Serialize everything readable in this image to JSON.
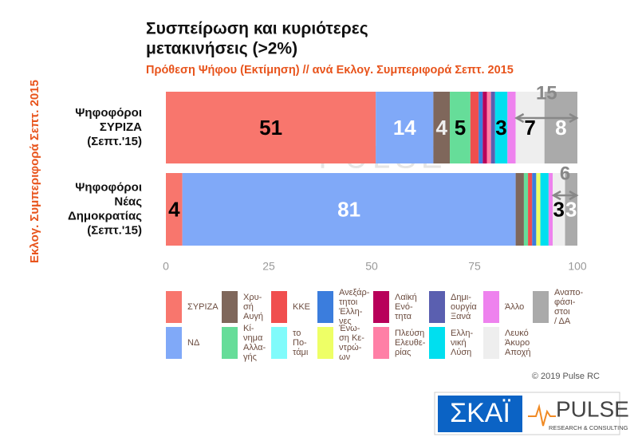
{
  "chart_data": {
    "type": "stacked-barh",
    "title": [
      "Συσπείρωση και κυριότερες",
      "μετακινήσεις (>2%)"
    ],
    "subtitle": "Πρόθεση Ψήφου (Εκτίμηση) // ανά Εκλογ. Συμπεριφορά Σεπτ. 2015",
    "ylabel": "Εκλογ. Συμπεριφορά Σεπτ. 2015",
    "categories": [
      "Ψηφοφόροι\nΣΥΡΙΖΑ\n(Σεπτ.'15)",
      "Ψηφοφόροι\nΝέας\nΔημοκρατίας\n(Σεπτ.'15)"
    ],
    "xlim": [
      0,
      100
    ],
    "xticks": [
      0,
      25,
      50,
      75,
      100
    ],
    "grid": false,
    "series": [
      {
        "name": "ΣΥΡΙΖΑ",
        "color": "#f8766d",
        "label_color": "#000000",
        "values": [
          51,
          4
        ]
      },
      {
        "name": "ΝΔ",
        "color": "#80a9f8",
        "label_color": "#ffffff",
        "values": [
          14,
          81
        ]
      },
      {
        "name": "Χρυ-\nσή\nΑυγή",
        "color": "#7f675b",
        "label_color": "#eeeeee",
        "values": [
          4,
          2
        ]
      },
      {
        "name": "Κί-\nνημα\nΑλλα-\nγής",
        "color": "#66dd99",
        "label_color": "#000000",
        "values": [
          5,
          1
        ]
      },
      {
        "name": "ΚΚΕ",
        "color": "#f04e4e",
        "label_color": "#000000",
        "values": [
          2,
          1
        ]
      },
      {
        "name": "το\nΠο-\nτάμι",
        "color": "#80fbfb",
        "label_color": "#000000",
        "values": [
          0,
          0
        ]
      },
      {
        "name": "Ανεξάρ-\nτητοι\nΈλλη-\nνες",
        "color": "#3b7ddd",
        "label_color": "#ffffff",
        "values": [
          1,
          1
        ]
      },
      {
        "name": "Ένω-\nση Κε-\nντρώ-\nων",
        "color": "#eeff66",
        "label_color": "#000000",
        "values": [
          0,
          1
        ]
      },
      {
        "name": "Λαϊκή\nΕνό-\nτητα",
        "color": "#b8005a",
        "label_color": "#ffffff",
        "values": [
          1,
          0
        ]
      },
      {
        "name": "Πλεύση\nΕλευθε-\nρίας",
        "color": "#ff7fa6",
        "label_color": "#000000",
        "values": [
          1,
          0
        ]
      },
      {
        "name": "Δημι-\nουργία\nΞανά",
        "color": "#5a5fb0",
        "label_color": "#ffffff",
        "values": [
          1,
          0
        ]
      },
      {
        "name": "Ελλη-\nνική\nΛύση",
        "color": "#00dfef",
        "label_color": "#000000",
        "values": [
          3,
          2
        ]
      },
      {
        "name": "Άλλο",
        "color": "#ee82ee",
        "label_color": "#000000",
        "values": [
          2,
          1
        ]
      },
      {
        "name": "Λευκό\nΆκυρο\nΑποχή",
        "color": "#eeeeee",
        "label_color": "#000000",
        "values": [
          7,
          3
        ]
      },
      {
        "name": "Αναπο-\nφάσι-\nστοι\n/ ΔΑ",
        "color": "#aaaaaa",
        "label_color": "#ffffff",
        "values": [
          8,
          3
        ]
      }
    ],
    "bracket_labels": [
      15,
      6
    ],
    "copyright": "© 2019 Pulse RC",
    "logos": {
      "skai": "ΣΚΑΪ",
      "pulse": "PULSE",
      "pulse_sub": "RESEARCH & CONSULTING"
    }
  }
}
